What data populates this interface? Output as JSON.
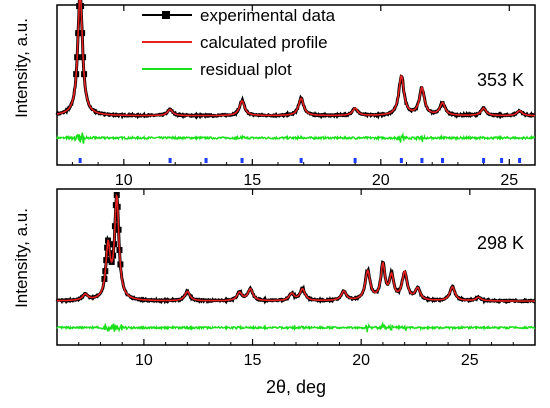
{
  "legend": {
    "placement": "top",
    "entries": [
      {
        "label": "experimental data",
        "color": "#000000",
        "marker": "square"
      },
      {
        "label": "calculated profile",
        "color": "#e8201f"
      },
      {
        "label": "residual plot",
        "color": "#19e019"
      }
    ]
  },
  "colors": {
    "experimental": "#000000",
    "calculated": "#e8201f",
    "residual": "#19e019",
    "hkl_ticks": "#1a3cff"
  },
  "x_axis_label": "2θ, deg",
  "chart_data": [
    {
      "type": "line",
      "panel": "top",
      "annotation": "353 K",
      "xlabel": "",
      "ylabel": "Intensity, a.u.",
      "xlim": [
        7.4,
        26.0
      ],
      "ylim": [
        -0.25,
        1.05
      ],
      "ticks": [
        10,
        15,
        20,
        25
      ],
      "tick_labels": [
        "10",
        "15",
        "20",
        "25"
      ],
      "series_names": [
        "experimental data",
        "calculated profile",
        "residual plot"
      ],
      "baseline": 0.15,
      "residual_offset": -0.03,
      "peaks": [
        {
          "x": 8.3,
          "h": 1.0,
          "w": 0.11
        },
        {
          "x": 11.8,
          "h": 0.05,
          "w": 0.12
        },
        {
          "x": 14.6,
          "h": 0.12,
          "w": 0.12
        },
        {
          "x": 16.9,
          "h": 0.14,
          "w": 0.12
        },
        {
          "x": 19.0,
          "h": 0.06,
          "w": 0.12
        },
        {
          "x": 20.8,
          "h": 0.32,
          "w": 0.12
        },
        {
          "x": 21.6,
          "h": 0.22,
          "w": 0.12
        },
        {
          "x": 22.4,
          "h": 0.1,
          "w": 0.12
        },
        {
          "x": 24.0,
          "h": 0.06,
          "w": 0.12
        },
        {
          "x": 25.4,
          "h": 0.04,
          "w": 0.12
        }
      ],
      "hkl_positions": [
        8.3,
        11.8,
        13.2,
        14.6,
        16.9,
        19.0,
        20.8,
        21.6,
        22.4,
        24.0,
        24.7,
        25.4
      ]
    },
    {
      "type": "line",
      "panel": "bottom",
      "annotation": "298 K",
      "xlabel": "2θ, deg",
      "ylabel": "Intensity, a.u.",
      "xlim": [
        6.0,
        28.0
      ],
      "ylim": [
        -0.3,
        1.05
      ],
      "ticks": [
        10,
        15,
        20,
        25
      ],
      "tick_labels": [
        "10",
        "15",
        "20",
        "25"
      ],
      "series_names": [
        "experimental data",
        "calculated profile",
        "residual plot"
      ],
      "baseline": 0.08,
      "residual_offset": -0.15,
      "peaks": [
        {
          "x": 7.3,
          "h": 0.05,
          "w": 0.15
        },
        {
          "x": 8.35,
          "h": 0.45,
          "w": 0.12
        },
        {
          "x": 8.75,
          "h": 0.88,
          "w": 0.12
        },
        {
          "x": 12.0,
          "h": 0.08,
          "w": 0.14
        },
        {
          "x": 14.4,
          "h": 0.07,
          "w": 0.14
        },
        {
          "x": 14.9,
          "h": 0.1,
          "w": 0.14
        },
        {
          "x": 16.8,
          "h": 0.06,
          "w": 0.14
        },
        {
          "x": 17.3,
          "h": 0.1,
          "w": 0.14
        },
        {
          "x": 19.2,
          "h": 0.08,
          "w": 0.14
        },
        {
          "x": 20.3,
          "h": 0.25,
          "w": 0.14
        },
        {
          "x": 21.0,
          "h": 0.3,
          "w": 0.12
        },
        {
          "x": 21.4,
          "h": 0.2,
          "w": 0.12
        },
        {
          "x": 22.0,
          "h": 0.24,
          "w": 0.14
        },
        {
          "x": 22.6,
          "h": 0.1,
          "w": 0.14
        },
        {
          "x": 24.2,
          "h": 0.12,
          "w": 0.14
        },
        {
          "x": 25.4,
          "h": 0.03,
          "w": 0.14
        }
      ]
    }
  ]
}
